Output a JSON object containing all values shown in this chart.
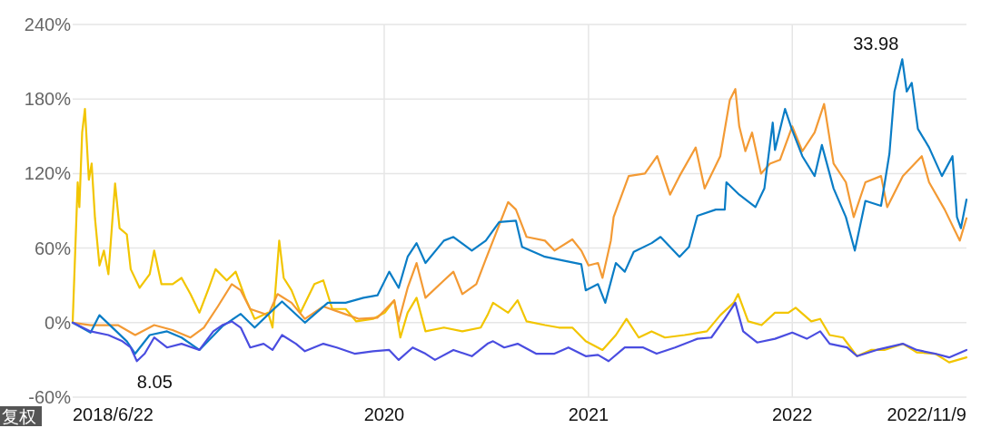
{
  "chart_data": {
    "type": "line",
    "xlim": [
      "2018-06-22",
      "2022-11-09"
    ],
    "xticks": [
      {
        "value": "2018-06-22",
        "label": "2018/6/22"
      },
      "2020",
      "2021",
      "2022",
      {
        "value": "2022-11-09",
        "label": "2022/11/9"
      }
    ],
    "ylim": [
      -60,
      240
    ],
    "yticks": [
      {
        "value": -60,
        "label": "-60%"
      },
      {
        "value": 0,
        "label": "0%"
      },
      {
        "value": 60,
        "label": "60%"
      },
      {
        "value": 120,
        "label": "120%"
      },
      {
        "value": 180,
        "label": "180%"
      },
      {
        "value": 240,
        "label": "240%"
      }
    ],
    "grid": true,
    "line_style": "solid",
    "marker": "none",
    "annotations": [
      {
        "text": "33.98",
        "x": "2022-07-17",
        "y": 212
      },
      {
        "text": "8.05",
        "x": "2018-10-12",
        "y": -25
      },
      "复权"
    ],
    "series": [
      {
        "color": "#f2c500",
        "x": [
          "2018-06-22",
          "2018-07-01",
          "2018-07-04",
          "2018-07-09",
          "2018-07-14",
          "2018-07-21",
          "2018-07-26",
          "2018-08-01",
          "2018-08-09",
          "2018-08-17",
          "2018-08-25",
          "2018-09-06",
          "2018-09-14",
          "2018-09-27",
          "2018-10-04",
          "2018-10-20",
          "2018-11-07",
          "2018-11-15",
          "2018-11-28",
          "2018-12-18",
          "2019-01-03",
          "2019-01-19",
          "2019-02-04",
          "2019-02-21",
          "2019-03-05",
          "2019-03-25",
          "2019-04-10",
          "2019-04-27",
          "2019-05-14",
          "2019-06-07",
          "2019-06-15",
          "2019-06-27",
          "2019-07-05",
          "2019-07-19",
          "2019-08-04",
          "2019-08-29",
          "2019-09-14",
          "2019-09-30",
          "2019-10-24",
          "2019-11-12",
          "2019-12-12",
          "2020-01-02",
          "2020-01-19",
          "2020-01-30",
          "2020-02-12",
          "2020-02-28",
          "2020-03-15",
          "2020-04-17",
          "2020-05-20",
          "2020-06-22",
          "2020-07-04",
          "2020-07-14",
          "2020-08-10",
          "2020-08-27",
          "2020-09-12",
          "2020-10-15",
          "2020-11-09",
          "2020-12-03",
          "2020-12-27",
          "2021-01-26",
          "2021-02-19",
          "2021-03-10",
          "2021-04-01",
          "2021-04-24",
          "2021-05-18",
          "2021-06-22",
          "2021-08-01",
          "2021-08-25",
          "2021-09-18",
          "2021-09-26",
          "2021-10-14",
          "2021-11-07",
          "2021-12-01",
          "2021-12-25",
          "2022-01-07",
          "2022-02-04",
          "2022-02-20",
          "2022-03-09",
          "2022-04-02",
          "2022-04-27",
          "2022-05-22",
          "2022-06-15",
          "2022-07-18",
          "2022-08-12",
          "2022-09-14",
          "2022-10-09",
          "2022-11-09"
        ],
        "values": [
          0,
          113,
          93,
          153,
          172,
          115,
          128,
          84,
          46,
          58,
          39,
          112,
          76,
          71,
          43,
          28,
          39,
          58,
          31,
          31,
          36,
          23,
          8,
          28,
          43,
          34,
          41,
          20,
          3,
          8,
          -4,
          66,
          36,
          26,
          8,
          31,
          34,
          11,
          11,
          1,
          3,
          8,
          18,
          -12,
          8,
          20,
          -7,
          -4,
          -7,
          -4,
          6,
          16,
          8,
          18,
          1,
          -2,
          -4,
          -4,
          -15,
          -22,
          -10,
          3,
          -12,
          -7,
          -12,
          -10,
          -7,
          6,
          16,
          23,
          1,
          -2,
          8,
          8,
          12,
          1,
          3,
          -10,
          -12,
          -27,
          -22,
          -22,
          -17,
          -24,
          -25,
          -32,
          -28
        ]
      },
      {
        "color": "#f39a34",
        "x": [
          "2018-06-22",
          "2018-07-24",
          "2018-09-11",
          "2018-10-12",
          "2018-11-15",
          "2018-12-18",
          "2019-01-19",
          "2019-02-12",
          "2019-03-09",
          "2019-04-03",
          "2019-04-19",
          "2019-05-06",
          "2019-06-07",
          "2019-06-24",
          "2019-07-19",
          "2019-08-12",
          "2019-09-14",
          "2019-10-16",
          "2019-11-17",
          "2019-12-20",
          "2020-01-19",
          "2020-01-27",
          "2020-02-12",
          "2020-02-28",
          "2020-03-15",
          "2020-04-17",
          "2020-05-04",
          "2020-05-20",
          "2020-06-14",
          "2020-07-01",
          "2020-08-10",
          "2020-08-24",
          "2020-09-12",
          "2020-10-15",
          "2020-11-01",
          "2020-12-03",
          "2020-12-19",
          "2021-01-01",
          "2021-01-18",
          "2021-01-26",
          "2021-02-10",
          "2021-02-15",
          "2021-03-14",
          "2021-04-12",
          "2021-05-04",
          "2021-05-27",
          "2021-06-13",
          "2021-07-12",
          "2021-07-28",
          "2021-08-25",
          "2021-09-11",
          "2021-09-21",
          "2021-09-28",
          "2021-10-09",
          "2021-10-21",
          "2021-11-06",
          "2021-11-22",
          "2021-12-10",
          "2022-01-01",
          "2022-01-19",
          "2022-02-10",
          "2022-02-27",
          "2022-03-16",
          "2022-04-07",
          "2022-04-21",
          "2022-05-12",
          "2022-06-09",
          "2022-06-20",
          "2022-07-18",
          "2022-08-21",
          "2022-09-03",
          "2022-10-01",
          "2022-10-28",
          "2022-11-09"
        ],
        "values": [
          0,
          -2,
          -2,
          -10,
          -2,
          -6,
          -12,
          -4,
          13,
          31,
          26,
          11,
          6,
          23,
          16,
          3,
          13,
          8,
          3,
          4,
          18,
          1,
          28,
          48,
          20,
          34,
          41,
          23,
          31,
          51,
          97,
          91,
          69,
          66,
          58,
          67,
          58,
          46,
          48,
          36,
          66,
          85,
          118,
          120,
          134,
          103,
          118,
          141,
          108,
          134,
          179,
          188,
          158,
          138,
          153,
          120,
          128,
          131,
          158,
          138,
          153,
          176,
          128,
          113,
          85,
          113,
          118,
          93,
          118,
          134,
          113,
          91,
          66,
          84
        ]
      },
      {
        "color": "#0a7dc6",
        "x": [
          "2018-06-22",
          "2018-07-24",
          "2018-08-09",
          "2018-09-27",
          "2018-10-12",
          "2018-11-07",
          "2018-12-08",
          "2019-01-03",
          "2019-02-04",
          "2019-03-17",
          "2019-04-19",
          "2019-05-14",
          "2019-06-15",
          "2019-07-02",
          "2019-08-12",
          "2019-09-22",
          "2019-10-24",
          "2019-11-25",
          "2019-12-20",
          "2020-01-10",
          "2020-01-27",
          "2020-02-12",
          "2020-02-28",
          "2020-03-15",
          "2020-04-17",
          "2020-05-04",
          "2020-06-06",
          "2020-07-01",
          "2020-07-25",
          "2020-08-24",
          "2020-09-04",
          "2020-10-15",
          "2020-11-17",
          "2020-12-19",
          "2020-12-27",
          "2021-01-18",
          "2021-01-31",
          "2021-02-19",
          "2021-03-07",
          "2021-03-23",
          "2021-04-24",
          "2021-05-10",
          "2021-06-13",
          "2021-06-30",
          "2021-07-15",
          "2021-08-17",
          "2021-09-02",
          "2021-09-05",
          "2021-09-28",
          "2021-10-27",
          "2021-11-12",
          "2021-11-27",
          "2021-12-01",
          "2021-12-19",
          "2021-12-31",
          "2022-01-19",
          "2022-02-10",
          "2022-02-23",
          "2022-03-16",
          "2022-04-07",
          "2022-04-23",
          "2022-05-12",
          "2022-06-09",
          "2022-06-24",
          "2022-07-03",
          "2022-07-17",
          "2022-07-25",
          "2022-08-03",
          "2022-08-14",
          "2022-09-03",
          "2022-09-26",
          "2022-10-15",
          "2022-10-23",
          "2022-10-30",
          "2022-11-09"
        ],
        "values": [
          0,
          -8,
          6,
          -15,
          -25,
          -10,
          -7,
          -12,
          -22,
          -3,
          7,
          -4,
          10,
          17,
          0,
          16,
          16,
          20,
          22,
          41,
          28,
          53,
          64,
          48,
          66,
          69,
          58,
          66,
          81,
          82,
          61,
          53,
          50,
          47,
          26,
          31,
          16,
          48,
          41,
          57,
          64,
          69,
          53,
          61,
          86,
          91,
          91,
          113,
          103,
          93,
          108,
          161,
          139,
          172,
          156,
          134,
          118,
          143,
          108,
          85,
          58,
          98,
          94,
          136,
          186,
          212,
          186,
          193,
          156,
          141,
          118,
          134,
          85,
          76,
          99
        ]
      },
      {
        "color": "#4a4de0",
        "x": [
          "2018-06-22",
          "2018-07-24",
          "2018-08-25",
          "2018-09-19",
          "2018-10-04",
          "2018-10-15",
          "2018-10-29",
          "2018-11-15",
          "2018-12-08",
          "2019-01-03",
          "2019-02-04",
          "2019-03-01",
          "2019-03-17",
          "2019-04-03",
          "2019-04-19",
          "2019-05-06",
          "2019-05-30",
          "2019-06-15",
          "2019-07-02",
          "2019-07-27",
          "2019-08-12",
          "2019-09-14",
          "2019-10-08",
          "2019-11-09",
          "2019-12-12",
          "2020-01-10",
          "2020-01-27",
          "2020-02-21",
          "2020-03-15",
          "2020-04-01",
          "2020-05-04",
          "2020-06-06",
          "2020-07-04",
          "2020-07-14",
          "2020-08-03",
          "2020-08-27",
          "2020-09-29",
          "2020-11-01",
          "2020-11-26",
          "2020-12-27",
          "2021-01-18",
          "2021-02-06",
          "2021-03-07",
          "2021-04-09",
          "2021-05-03",
          "2021-06-05",
          "2021-07-15",
          "2021-08-09",
          "2021-09-02",
          "2021-09-21",
          "2021-10-05",
          "2021-10-30",
          "2021-12-01",
          "2022-01-01",
          "2022-01-27",
          "2022-02-20",
          "2022-03-09",
          "2022-04-09",
          "2022-04-27",
          "2022-06-01",
          "2022-07-18",
          "2022-08-12",
          "2022-09-14",
          "2022-10-09",
          "2022-11-09"
        ],
        "values": [
          0,
          -7,
          -10,
          -15,
          -20,
          -31,
          -25,
          -12,
          -20,
          -17,
          -22,
          -7,
          -2,
          1,
          -4,
          -20,
          -17,
          -22,
          -10,
          -17,
          -23,
          -17,
          -20,
          -25,
          -23,
          -22,
          -30,
          -20,
          -25,
          -30,
          -22,
          -27,
          -17,
          -15,
          -20,
          -17,
          -25,
          -25,
          -20,
          -27,
          -26,
          -31,
          -20,
          -20,
          -25,
          -20,
          -13,
          -12,
          3,
          16,
          -7,
          -16,
          -13,
          -8,
          -13,
          -7,
          -17,
          -20,
          -27,
          -22,
          -17,
          -22,
          -25,
          -28,
          -22
        ]
      }
    ]
  }
}
